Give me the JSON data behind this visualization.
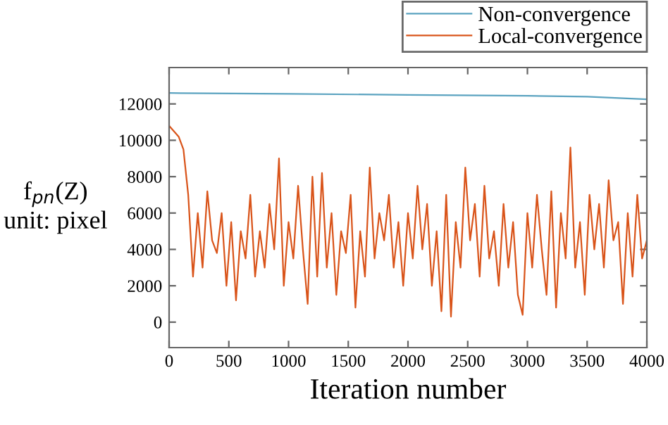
{
  "chart_data": {
    "type": "line",
    "xlabel": "Iteration number",
    "ylabel": "f$_{pn}$(Z)\nunit: pixel",
    "xlim": [
      0,
      4000
    ],
    "ylim": [
      -1400,
      14000
    ],
    "xticks": [
      0,
      500,
      1000,
      1500,
      2000,
      2500,
      3000,
      3500,
      4000
    ],
    "yticks": [
      0,
      2000,
      4000,
      6000,
      8000,
      10000,
      12000
    ],
    "grid": false,
    "legend": "top right",
    "marker": "none",
    "line_style": "solid",
    "series": [
      {
        "name": "Non-convergence",
        "color": "#5ba3c0",
        "x": [
          0,
          1000,
          2000,
          3000,
          3500,
          4000
        ],
        "values": [
          12600,
          12550,
          12500,
          12450,
          12400,
          12250
        ]
      },
      {
        "name": "Local-convergence",
        "color": "#d9541a",
        "x": [
          0,
          40,
          80,
          120,
          160,
          200,
          240,
          280,
          320,
          360,
          400,
          440,
          480,
          520,
          560,
          600,
          640,
          680,
          720,
          760,
          800,
          840,
          880,
          920,
          960,
          1000,
          1040,
          1080,
          1120,
          1160,
          1200,
          1240,
          1280,
          1320,
          1360,
          1400,
          1440,
          1480,
          1520,
          1560,
          1600,
          1640,
          1680,
          1720,
          1760,
          1800,
          1840,
          1880,
          1920,
          1960,
          2000,
          2040,
          2080,
          2120,
          2160,
          2200,
          2240,
          2280,
          2320,
          2360,
          2400,
          2440,
          2480,
          2520,
          2560,
          2600,
          2640,
          2680,
          2720,
          2760,
          2800,
          2840,
          2880,
          2920,
          2960,
          3000,
          3040,
          3080,
          3120,
          3160,
          3200,
          3240,
          3280,
          3320,
          3360,
          3400,
          3440,
          3480,
          3520,
          3560,
          3600,
          3640,
          3680,
          3720,
          3760,
          3800,
          3840,
          3880,
          3920,
          3960,
          4000
        ],
        "values": [
          10800,
          10500,
          10200,
          9500,
          7000,
          2500,
          6000,
          3000,
          7200,
          4500,
          3800,
          6000,
          2000,
          5500,
          1200,
          5000,
          3500,
          7000,
          2500,
          5000,
          3000,
          6500,
          4000,
          9000,
          2000,
          5500,
          3500,
          7500,
          4000,
          1000,
          8000,
          2500,
          8200,
          3000,
          6000,
          1500,
          5000,
          3800,
          7000,
          800,
          5000,
          2500,
          8500,
          3500,
          6000,
          4500,
          7000,
          3000,
          5500,
          2000,
          6000,
          3500,
          7500,
          4000,
          6500,
          2000,
          5000,
          600,
          7000,
          300,
          5500,
          3000,
          8500,
          4500,
          6500,
          2500,
          7500,
          3500,
          5000,
          2000,
          6500,
          3000,
          5500,
          1500,
          400,
          6000,
          3000,
          7000,
          4000,
          1500,
          7200,
          800,
          6000,
          3500,
          9600,
          3000,
          5500,
          1500,
          7000,
          4000,
          6500,
          3000,
          7800,
          4500,
          5500,
          1000,
          6000,
          2500,
          7000,
          3500,
          4500
        ]
      }
    ]
  }
}
